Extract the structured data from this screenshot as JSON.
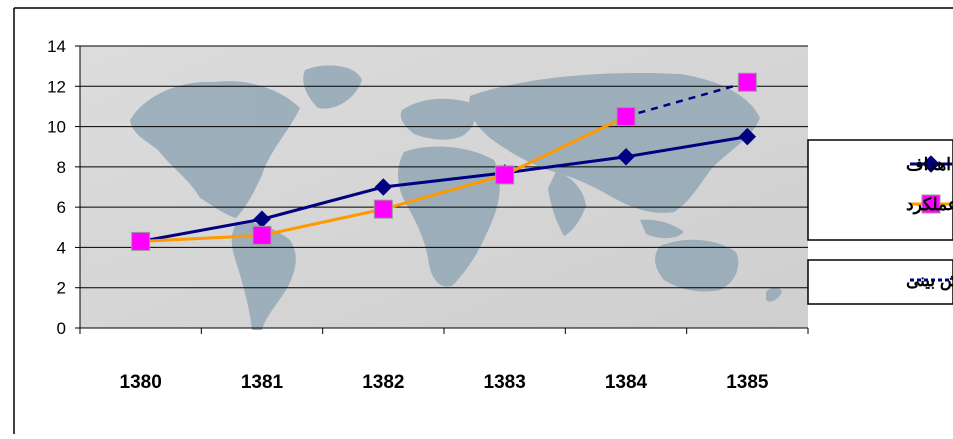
{
  "chart_data": {
    "type": "line",
    "categories": [
      "1380",
      "1381",
      "1382",
      "1383",
      "1384",
      "1385"
    ],
    "ylim": [
      0,
      14
    ],
    "y_ticks": [
      "0",
      "2",
      "4",
      "6",
      "8",
      "10",
      "12",
      "14"
    ],
    "grid": true,
    "legend_position": "right",
    "background": "world-map",
    "series": [
      {
        "name": "اهداف",
        "values": [
          4.3,
          5.4,
          7.0,
          7.7,
          8.5,
          9.5
        ],
        "color": "#000080",
        "marker": "diamond"
      },
      {
        "name": "عملکرد",
        "values": [
          4.3,
          4.6,
          5.9,
          7.6,
          10.5,
          null
        ],
        "color": "#FF9900",
        "marker_color": "#FF00FF",
        "marker": "square"
      },
      {
        "name": "پیش بینی",
        "values": [
          null,
          null,
          null,
          null,
          10.5,
          12.2
        ],
        "color": "#000080",
        "marker_color": "#FF00FF",
        "marker": "square",
        "line_style": "dashed"
      }
    ]
  }
}
